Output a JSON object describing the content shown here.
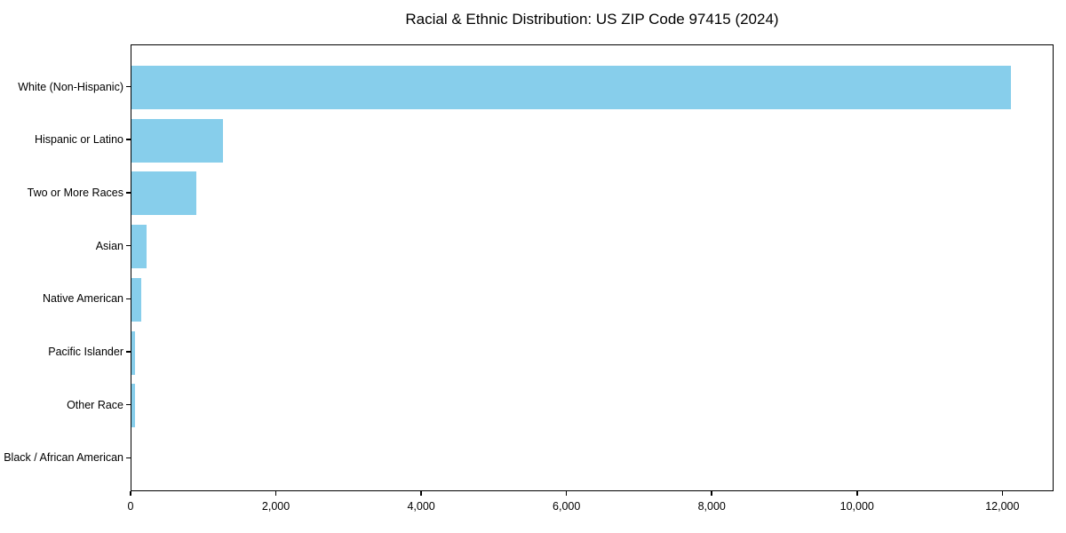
{
  "title": "Racial & Ethnic Distribution: US ZIP Code 97415 (2024)",
  "chart_data": {
    "type": "bar",
    "orientation": "horizontal",
    "title": "Racial & Ethnic Distribution: US ZIP Code 97415 (2024)",
    "xlabel": "",
    "ylabel": "",
    "categories": [
      "White (Non-Hispanic)",
      "Hispanic or Latino",
      "Two or More Races",
      "Asian",
      "Native American",
      "Pacific Islander",
      "Other Race",
      "Black / African American"
    ],
    "values": [
      12100,
      1260,
      890,
      210,
      130,
      50,
      55,
      0
    ],
    "xlim": [
      0,
      12705
    ],
    "xticks": [
      0,
      2000,
      4000,
      6000,
      8000,
      10000,
      12000
    ],
    "xtick_labels": [
      "0",
      "2,000",
      "4,000",
      "6,000",
      "8,000",
      "10,000",
      "12,000"
    ],
    "bar_color": "#87CEEB",
    "grid": false,
    "legend": false
  }
}
